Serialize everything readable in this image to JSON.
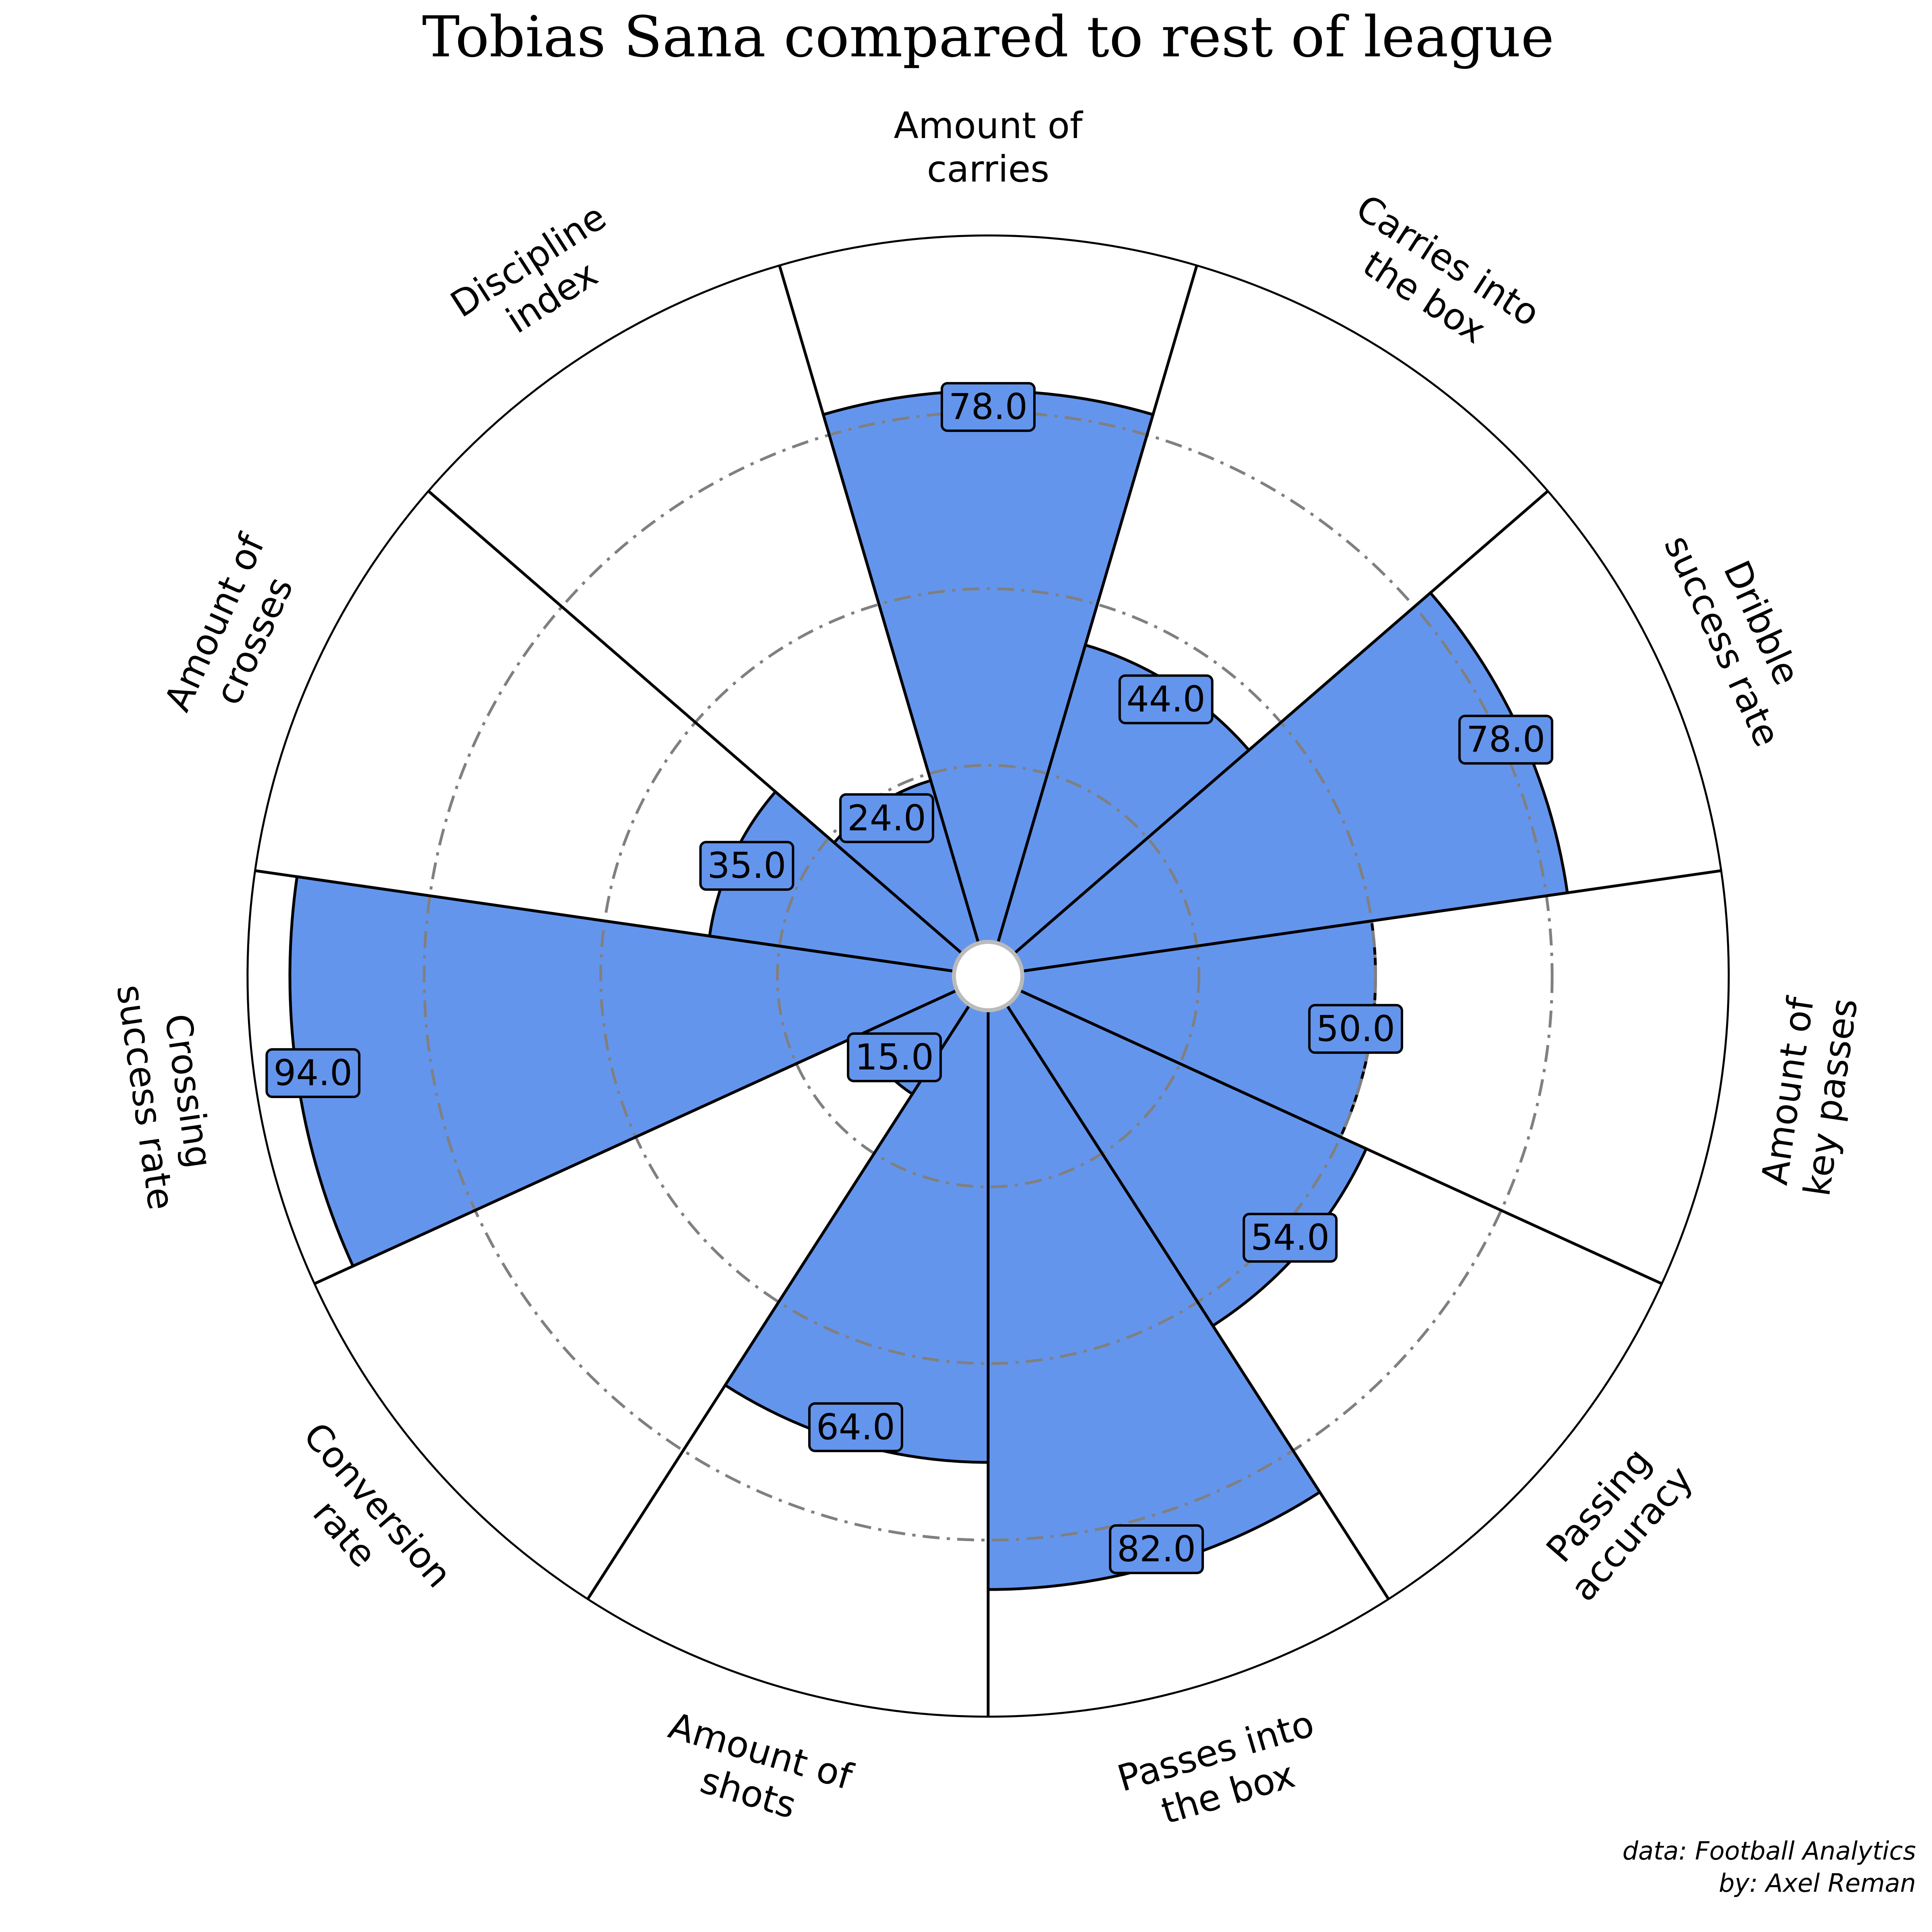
{
  "chart_data": {
    "type": "radial-bar",
    "title": "Tobias Sana compared to rest of league",
    "range": [
      0,
      100
    ],
    "grid_rings": [
      25,
      50,
      75,
      100
    ],
    "params": [
      {
        "label": "Amount of\ncarries",
        "value": 78.0,
        "value_label": "78.0"
      },
      {
        "label": "Carries into\nthe box",
        "value": 44.0,
        "value_label": "44.0"
      },
      {
        "label": "Dribble\nsuccess rate",
        "value": 78.0,
        "value_label": "78.0"
      },
      {
        "label": "Amount of\nkey passes",
        "value": 50.0,
        "value_label": "50.0"
      },
      {
        "label": "Passing\naccuracy",
        "value": 54.0,
        "value_label": "54.0"
      },
      {
        "label": "Passes into\nthe box",
        "value": 82.0,
        "value_label": "82.0"
      },
      {
        "label": "Amount of\nshots",
        "value": 64.0,
        "value_label": "64.0"
      },
      {
        "label": "Conversion\nrate",
        "value": 15.0,
        "value_label": "15.0"
      },
      {
        "label": "Crossing\nsuccess rate",
        "value": 94.0,
        "value_label": "94.0"
      },
      {
        "label": "Amount of\ncrosses",
        "value": 35.0,
        "value_label": "35.0"
      },
      {
        "label": "Discipline\nindex",
        "value": 24.0,
        "value_label": "24.0"
      }
    ],
    "colors": {
      "slice_fill": "#6495ED",
      "slice_edge": "#000000",
      "grid": "#808080",
      "background": "#ffffff"
    },
    "credits": [
      "data: Football Analytics",
      "by: Axel Reman"
    ]
  }
}
